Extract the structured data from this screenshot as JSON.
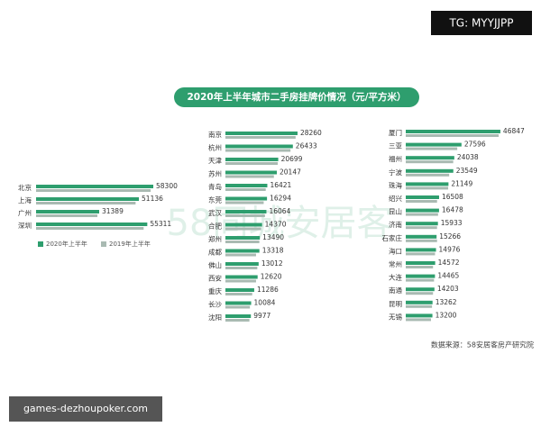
{
  "badge": "TG: MYYJJPP",
  "footer_link": "games-dezhoupoker.com",
  "watermark": "58同城安居客",
  "chart_data": {
    "type": "bar",
    "title": "2020年上半年城市二手房挂牌价情况（元/平方米）",
    "source": "数据来源：58安居客房产研究院",
    "series": [
      {
        "name": "2020年上半年",
        "color": "#2e9e6e"
      },
      {
        "name": "2019年上半年",
        "color": "#a9bab2"
      }
    ],
    "panels": [
      {
        "categories": [
          "北京",
          "上海",
          "广州",
          "深圳"
        ],
        "series": [
          {
            "values": [
              58300,
              51136,
              31389,
              55311
            ]
          },
          {
            "values": [
              57000,
              49500,
              30500,
              53500
            ]
          }
        ]
      },
      {
        "categories": [
          "南京",
          "杭州",
          "天津",
          "苏州",
          "青岛",
          "东莞",
          "武汉",
          "合肥",
          "郑州",
          "成都",
          "佛山",
          "西安",
          "重庆",
          "长沙",
          "沈阳"
        ],
        "series": [
          {
            "values": [
              28260,
              26433,
              20699,
              20147,
              16421,
              16294,
              16064,
              14370,
              13490,
              13318,
              13012,
              12620,
              11286,
              10084,
              9977
            ]
          },
          {
            "values": [
              27500,
              25500,
              20500,
              19000,
              15800,
              15000,
              15500,
              14000,
              13300,
              12000,
              12500,
              12000,
              10500,
              9600,
              9400
            ]
          }
        ]
      },
      {
        "categories": [
          "厦门",
          "三亚",
          "福州",
          "宁波",
          "珠海",
          "绍兴",
          "昆山",
          "济南",
          "石家庄",
          "海口",
          "常州",
          "大连",
          "南通",
          "昆明",
          "无锡"
        ],
        "series": [
          {
            "values": [
              46847,
              27596,
              24038,
              23549,
              21149,
              16508,
              16478,
              15933,
              15266,
              14976,
              14572,
              14465,
              14203,
              13262,
              13200
            ]
          },
          {
            "values": [
              46000,
              25500,
              23500,
              21500,
              21000,
              15500,
              16000,
              15500,
              15500,
              14500,
              13500,
              14000,
              13500,
              13000,
              12500
            ]
          }
        ]
      }
    ]
  }
}
